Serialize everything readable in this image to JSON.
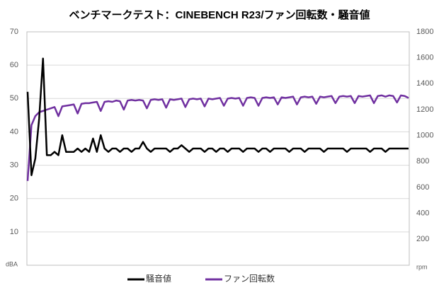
{
  "chart_data": {
    "type": "line",
    "title": "ベンチマークテスト：CINEBENCH R23/ファン回転数・騒音値",
    "y_label": "dBA",
    "y2_label": "rpm",
    "ylim": [
      0,
      70
    ],
    "yticks": [
      10,
      20,
      30,
      40,
      50,
      60,
      70
    ],
    "y2lim": [
      0,
      1800
    ],
    "y2ticks": [
      200,
      400,
      600,
      800,
      1000,
      1200,
      1400,
      1600,
      1800
    ],
    "grid": true,
    "legend": "bottom",
    "series": [
      {
        "name": "騒音値",
        "color": "#000000",
        "values": [
          52,
          27,
          32,
          44,
          62,
          33,
          33,
          34,
          33,
          39,
          34,
          34,
          34,
          35,
          34,
          35,
          34,
          38,
          34,
          39,
          35,
          34,
          35,
          35,
          34,
          35,
          35,
          34,
          35,
          35,
          37,
          35,
          34,
          35,
          35,
          35,
          35,
          34,
          35,
          35,
          36,
          35,
          34,
          35,
          35,
          35,
          34,
          35,
          35,
          34,
          35,
          35,
          34,
          35,
          35,
          35,
          34,
          35,
          35,
          35,
          34,
          35,
          35,
          34,
          35,
          35,
          35,
          35,
          34,
          35,
          35,
          35,
          34,
          35,
          35,
          35,
          35,
          34,
          35,
          35,
          35,
          35,
          35,
          34,
          35,
          35,
          35,
          35,
          35,
          34,
          35,
          35,
          35,
          34,
          35,
          35,
          35,
          35,
          35,
          35
        ]
      },
      {
        "name": "ファン回転数",
        "color": "#7030a0",
        "axis": "y2",
        "values": [
          650,
          1080,
          1150,
          1180,
          1190,
          1200,
          1210,
          1220,
          1150,
          1225,
          1230,
          1235,
          1240,
          1170,
          1245,
          1250,
          1250,
          1255,
          1260,
          1190,
          1260,
          1265,
          1260,
          1270,
          1265,
          1200,
          1270,
          1275,
          1270,
          1275,
          1270,
          1210,
          1275,
          1280,
          1275,
          1280,
          1215,
          1280,
          1275,
          1280,
          1285,
          1220,
          1280,
          1285,
          1280,
          1285,
          1225,
          1285,
          1280,
          1285,
          1290,
          1230,
          1285,
          1290,
          1285,
          1290,
          1230,
          1290,
          1295,
          1290,
          1230,
          1290,
          1295,
          1290,
          1295,
          1240,
          1295,
          1290,
          1295,
          1300,
          1240,
          1295,
          1300,
          1295,
          1300,
          1245,
          1300,
          1295,
          1300,
          1305,
          1250,
          1300,
          1305,
          1300,
          1305,
          1250,
          1305,
          1300,
          1305,
          1310,
          1250,
          1305,
          1310,
          1300,
          1310,
          1305,
          1255,
          1310,
          1305,
          1290
        ]
      }
    ]
  }
}
